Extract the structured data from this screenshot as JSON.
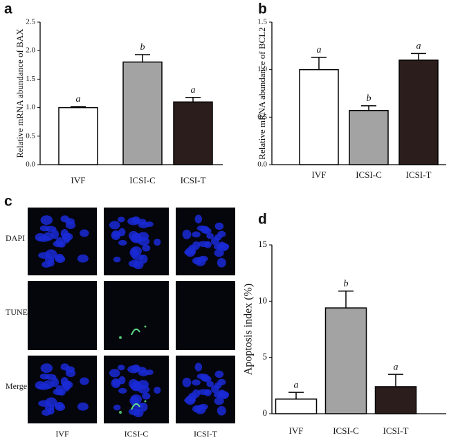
{
  "chart_data": [
    {
      "type": "bar",
      "panel": "a",
      "ylabel": "Relative mRNA abundance of BAX",
      "categories": [
        "IVF",
        "ICSI-C",
        "ICSI-T"
      ],
      "values": [
        1.0,
        1.8,
        1.1
      ],
      "errors": [
        0.02,
        0.13,
        0.08
      ],
      "annotations": [
        "a",
        "b",
        "a"
      ],
      "colors": [
        "#ffffff",
        "#a3a3a3",
        "#2b1d1b"
      ],
      "ylim": [
        0,
        2.5
      ],
      "yticks": [
        {
          "value": 0,
          "label": "0.0"
        },
        {
          "value": 0.5,
          "label": "0.5"
        },
        {
          "value": 1,
          "label": "1.0"
        },
        {
          "value": 1.5,
          "label": "1.5"
        },
        {
          "value": 2,
          "label": "2.0"
        },
        {
          "value": 2.5,
          "label": "2.5"
        }
      ]
    },
    {
      "type": "bar",
      "panel": "b",
      "ylabel": "Relative mRNA abundance of BCL2",
      "categories": [
        "IVF",
        "ICSI-C",
        "ICSI-T"
      ],
      "values": [
        1.0,
        0.57,
        1.1
      ],
      "errors": [
        0.13,
        0.05,
        0.07
      ],
      "annotations": [
        "a",
        "b",
        "a"
      ],
      "colors": [
        "#ffffff",
        "#a3a3a3",
        "#2b1d1b"
      ],
      "ylim": [
        0,
        1.5
      ],
      "yticks": [
        {
          "value": 0,
          "label": "0.0"
        },
        {
          "value": 0.5,
          "label": "0.5"
        },
        {
          "value": 1,
          "label": "1.0"
        },
        {
          "value": 1.5,
          "label": "1.5"
        }
      ]
    },
    {
      "type": "image",
      "panel": "c",
      "rows": [
        "DAPI",
        "TUNEL",
        "Merge"
      ],
      "columns": [
        "IVF",
        "ICSI-C",
        "ICSI-T"
      ]
    },
    {
      "type": "bar",
      "panel": "d",
      "ylabel": "Apoptosis index (%)",
      "categories": [
        "IVF",
        "ICSI-C",
        "ICSI-T"
      ],
      "values": [
        1.3,
        9.4,
        2.4
      ],
      "errors": [
        0.6,
        1.5,
        1.1
      ],
      "annotations": [
        "a",
        "b",
        "a"
      ],
      "colors": [
        "#ffffff",
        "#a3a3a3",
        "#2b1d1b"
      ],
      "ylim": [
        0,
        15
      ],
      "yticks": [
        0,
        5,
        10,
        15
      ]
    }
  ]
}
